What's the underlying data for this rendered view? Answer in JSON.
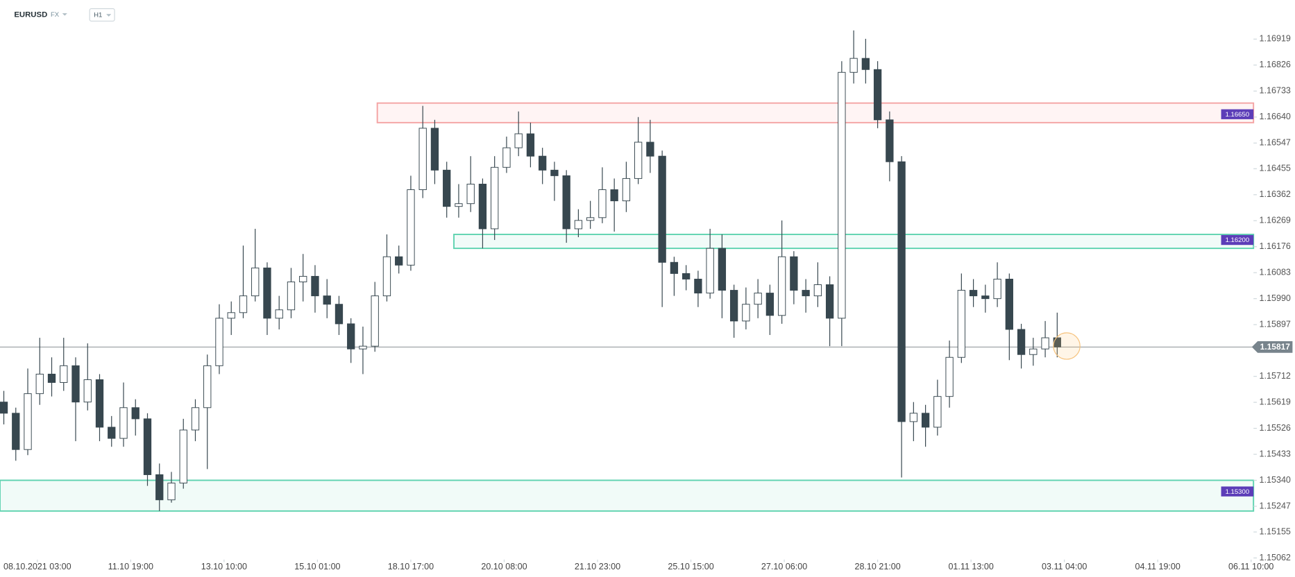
{
  "header": {
    "symbol": "EURUSD",
    "market": "FX",
    "timeframe": "H1"
  },
  "chart_data": {
    "type": "candlestick",
    "x": [
      -14,
      -9,
      -4,
      1,
      6,
      11,
      16,
      21,
      26,
      31,
      36,
      41,
      46,
      51,
      56,
      61,
      66,
      71,
      76,
      81,
      86,
      91,
      96,
      101,
      106,
      111,
      116,
      121,
      126,
      131,
      136,
      141,
      146,
      151,
      156,
      161,
      166,
      171,
      176,
      181,
      186,
      191,
      196,
      201,
      206,
      211,
      216,
      221,
      226,
      231,
      236,
      241,
      246,
      251,
      256,
      261,
      266,
      271,
      276,
      281,
      286,
      291,
      296,
      301,
      306,
      311,
      316,
      321,
      326,
      331,
      336,
      341,
      346,
      351,
      356,
      361,
      366,
      371,
      376,
      381,
      386,
      391,
      396,
      401,
      406,
      411,
      416,
      421,
      426
    ],
    "open": [
      1.1562,
      1.1558,
      1.1545,
      1.1565,
      1.1572,
      1.1569,
      1.1575,
      1.1562,
      1.157,
      1.1553,
      1.1549,
      1.156,
      1.1556,
      1.1536,
      1.1527,
      1.1533,
      1.1552,
      1.156,
      1.1575,
      1.1592,
      1.1594,
      1.16,
      1.161,
      1.1592,
      1.1595,
      1.1605,
      1.1607,
      1.16,
      1.1597,
      1.159,
      1.1581,
      1.1582,
      1.16,
      1.1614,
      1.1611,
      1.1638,
      1.166,
      1.1645,
      1.1632,
      1.1633,
      1.164,
      1.1624,
      1.1646,
      1.1653,
      1.1658,
      1.165,
      1.1645,
      1.1643,
      1.1624,
      1.1627,
      1.1628,
      1.1638,
      1.1634,
      1.1642,
      1.1655,
      1.165,
      1.1612,
      1.1608,
      1.1606,
      1.1601,
      1.1617,
      1.1602,
      1.1591,
      1.1597,
      1.1601,
      1.1593,
      1.1614,
      1.1602,
      1.16,
      1.1604,
      1.1592,
      1.168,
      1.1685,
      1.1681,
      1.1663,
      1.1648,
      1.1555,
      1.1558,
      1.1553,
      1.1564,
      1.1578,
      1.1602,
      1.16,
      1.1599,
      1.1606,
      1.1588,
      1.1579,
      1.1581,
      1.1585
    ],
    "high": [
      1.1566,
      1.156,
      1.1574,
      1.1585,
      1.1578,
      1.1585,
      1.1578,
      1.1583,
      1.1572,
      1.1557,
      1.1569,
      1.1563,
      1.1558,
      1.154,
      1.1537,
      1.1556,
      1.1563,
      1.1579,
      1.1597,
      1.1598,
      1.1618,
      1.1624,
      1.1612,
      1.16,
      1.161,
      1.1615,
      1.1611,
      1.1606,
      1.16,
      1.1592,
      1.1589,
      1.1605,
      1.1622,
      1.1618,
      1.1643,
      1.1668,
      1.1663,
      1.1648,
      1.164,
      1.165,
      1.1642,
      1.165,
      1.1657,
      1.1666,
      1.1662,
      1.1653,
      1.1648,
      1.1645,
      1.1631,
      1.1634,
      1.1646,
      1.1642,
      1.1648,
      1.1664,
      1.1663,
      1.1652,
      1.1614,
      1.1611,
      1.1609,
      1.1624,
      1.1622,
      1.1604,
      1.1603,
      1.1606,
      1.1604,
      1.1627,
      1.1616,
      1.1606,
      1.1612,
      1.1607,
      1.1684,
      1.1695,
      1.1692,
      1.1684,
      1.1666,
      1.165,
      1.1562,
      1.1561,
      1.157,
      1.1584,
      1.1608,
      1.1606,
      1.1604,
      1.1612,
      1.1608,
      1.159,
      1.1585,
      1.1591,
      1.1594
    ],
    "low": [
      1.1554,
      1.1541,
      1.1543,
      1.1561,
      1.1564,
      1.1566,
      1.1548,
      1.1559,
      1.1548,
      1.1546,
      1.1546,
      1.155,
      1.1532,
      1.1523,
      1.1526,
      1.1531,
      1.1548,
      1.1538,
      1.1572,
      1.1586,
      1.1592,
      1.1598,
      1.1586,
      1.1588,
      1.1592,
      1.1598,
      1.1594,
      1.1592,
      1.1586,
      1.1576,
      1.1572,
      1.158,
      1.1598,
      1.1608,
      1.1609,
      1.1635,
      1.164,
      1.1628,
      1.1628,
      1.163,
      1.1617,
      1.162,
      1.1644,
      1.165,
      1.1646,
      1.164,
      1.1634,
      1.1619,
      1.1621,
      1.1624,
      1.1626,
      1.1623,
      1.163,
      1.164,
      1.1644,
      1.1596,
      1.16,
      1.1602,
      1.1596,
      1.1599,
      1.1592,
      1.1585,
      1.1588,
      1.1592,
      1.1586,
      1.159,
      1.1597,
      1.1594,
      1.1596,
      1.1582,
      1.1582,
      1.1676,
      1.1676,
      1.166,
      1.1641,
      1.1535,
      1.1548,
      1.1546,
      1.155,
      1.156,
      1.1576,
      1.1596,
      1.1594,
      1.1596,
      1.1577,
      1.1574,
      1.1575,
      1.1578,
      1.1578
    ],
    "close": [
      1.1558,
      1.1545,
      1.1565,
      1.1572,
      1.1569,
      1.1575,
      1.1562,
      1.157,
      1.1553,
      1.1549,
      1.156,
      1.1556,
      1.1536,
      1.1527,
      1.1533,
      1.1552,
      1.156,
      1.1575,
      1.1592,
      1.1594,
      1.16,
      1.161,
      1.1592,
      1.1595,
      1.1605,
      1.1607,
      1.16,
      1.1597,
      1.159,
      1.1581,
      1.1582,
      1.16,
      1.1614,
      1.1611,
      1.1638,
      1.166,
      1.1645,
      1.1632,
      1.1633,
      1.164,
      1.1624,
      1.1646,
      1.1653,
      1.1658,
      1.165,
      1.1645,
      1.1643,
      1.1624,
      1.1627,
      1.1628,
      1.1638,
      1.1634,
      1.1642,
      1.1655,
      1.165,
      1.1612,
      1.1608,
      1.1606,
      1.1601,
      1.1617,
      1.1602,
      1.1591,
      1.1597,
      1.1601,
      1.1593,
      1.1614,
      1.1602,
      1.16,
      1.1604,
      1.1592,
      1.168,
      1.1685,
      1.1681,
      1.1663,
      1.1648,
      1.1555,
      1.1558,
      1.1553,
      1.1564,
      1.1578,
      1.1602,
      1.16,
      1.1599,
      1.1606,
      1.1588,
      1.1579,
      1.1581,
      1.1585,
      1.15817
    ],
    "up_color": "#ffffff",
    "down_color": "#37474f",
    "xlim": [
      -15.6,
      508
    ],
    "ylim": [
      1.15062,
      1.1697
    ],
    "xticks": [
      {
        "value": 0,
        "label": "08.10.2021  03:00"
      },
      {
        "value": 39,
        "label": "11.10  19:00"
      },
      {
        "value": 78,
        "label": "13.10  10:00"
      },
      {
        "value": 117,
        "label": "15.10  01:00"
      },
      {
        "value": 156,
        "label": "18.10  17:00"
      },
      {
        "value": 195,
        "label": "20.10  08:00"
      },
      {
        "value": 234,
        "label": "21.10  23:00"
      },
      {
        "value": 273,
        "label": "25.10  15:00"
      },
      {
        "value": 312,
        "label": "27.10  06:00"
      },
      {
        "value": 351,
        "label": "28.10  21:00"
      },
      {
        "value": 390,
        "label": "01.11  13:00"
      },
      {
        "value": 429,
        "label": "03.11  04:00"
      },
      {
        "value": 468,
        "label": "04.11  19:00"
      },
      {
        "value": 507,
        "label": "06.11  10:00"
      }
    ],
    "yticks": [
      1.16919,
      1.16826,
      1.16733,
      {
        "value": 1.1664,
        "label": "1.16640"
      },
      1.16547,
      1.16455,
      1.16362,
      1.16269,
      1.16176,
      1.16083,
      {
        "value": 1.1599,
        "label": "1.15990"
      },
      1.15897,
      1.15712,
      1.15619,
      1.15526,
      1.15433,
      {
        "value": 1.1534,
        "label": "1.15340"
      },
      1.15247,
      1.15155,
      1.15062
    ],
    "last_price": 1.15817,
    "zones": [
      {
        "x_start": 142,
        "top": 1.1669,
        "bottom": 1.1662,
        "color": "#f4a3a3",
        "fill": "#fff4f4",
        "label": {
          "value": 1.1665,
          "label": "1.16650"
        }
      },
      {
        "x_start": 174,
        "top": 1.1622,
        "bottom": 1.1617,
        "color": "#5fd3b0",
        "fill": "#f1fbf8",
        "label": {
          "value": 1.162,
          "label": "1.16200"
        }
      },
      {
        "x_start": -15.6,
        "top": 1.1534,
        "bottom": 1.1523,
        "color": "#5fd3b0",
        "fill": "#f1fbf8",
        "label": {
          "value": 1.153,
          "label": "1.15300"
        }
      }
    ]
  }
}
